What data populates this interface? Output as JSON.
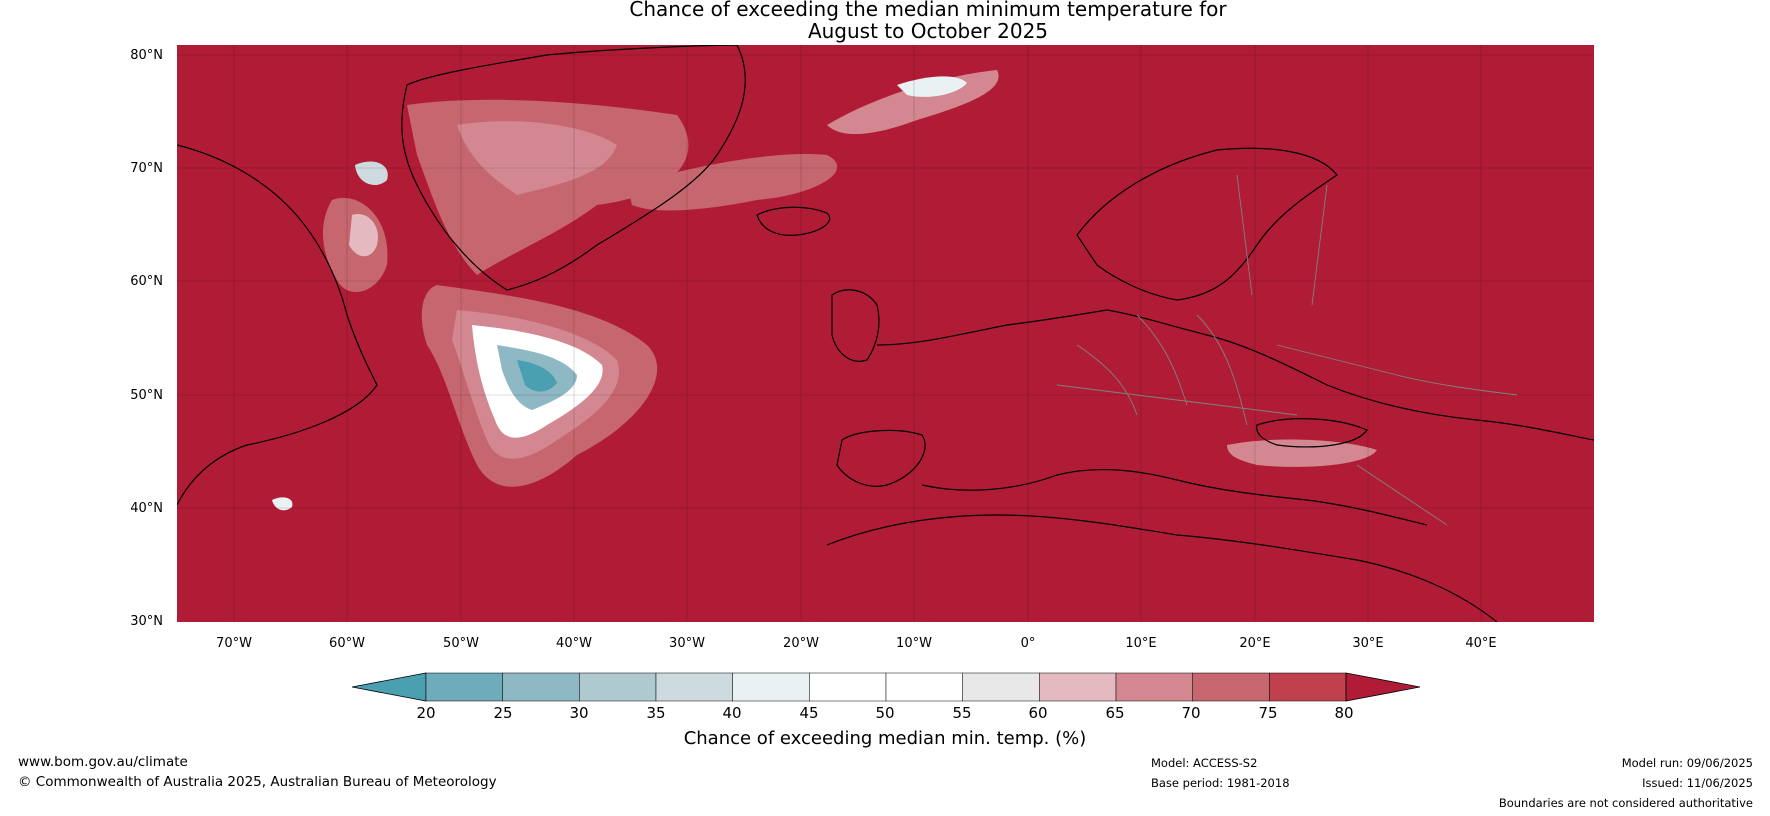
{
  "title": {
    "line1": "Chance of exceeding the median minimum temperature for",
    "line2": "August to October 2025"
  },
  "map": {
    "background_color": "#b01c36",
    "lat_labels": [
      "80°N",
      "70°N",
      "60°N",
      "50°N",
      "40°N",
      "30°N"
    ],
    "lon_labels": [
      "70°W",
      "60°W",
      "50°W",
      "40°W",
      "30°W",
      "20°W",
      "10°W",
      "0°",
      "10°E",
      "20°E",
      "30°E",
      "40°E"
    ]
  },
  "colorbar": {
    "label": "Chance of exceeding median min. temp. (%)",
    "ticks": [
      "20",
      "25",
      "30",
      "35",
      "40",
      "45",
      "50",
      "55",
      "60",
      "65",
      "70",
      "75",
      "80"
    ],
    "colors": [
      "#4a9fb0",
      "#6eacba",
      "#8db8c4",
      "#aec9d0",
      "#cddbe0",
      "#e9f1f3",
      "#ffffff",
      "#ffffff",
      "#e8e8e8",
      "#e4b9c0",
      "#d38891",
      "#c6666f",
      "#bf414d",
      "#b01c36"
    ]
  },
  "footer": {
    "website": "www.bom.gov.au/climate",
    "copyright": "© Commonwealth of Australia 2025, Australian Bureau of Meteorology",
    "model": "Model: ACCESS-S2",
    "base_period": "Base period: 1981-2018",
    "model_run": "Model run: 09/06/2025",
    "issued": "Issued: 11/06/2025",
    "disclaimer": "Boundaries are not considered authoritative"
  }
}
